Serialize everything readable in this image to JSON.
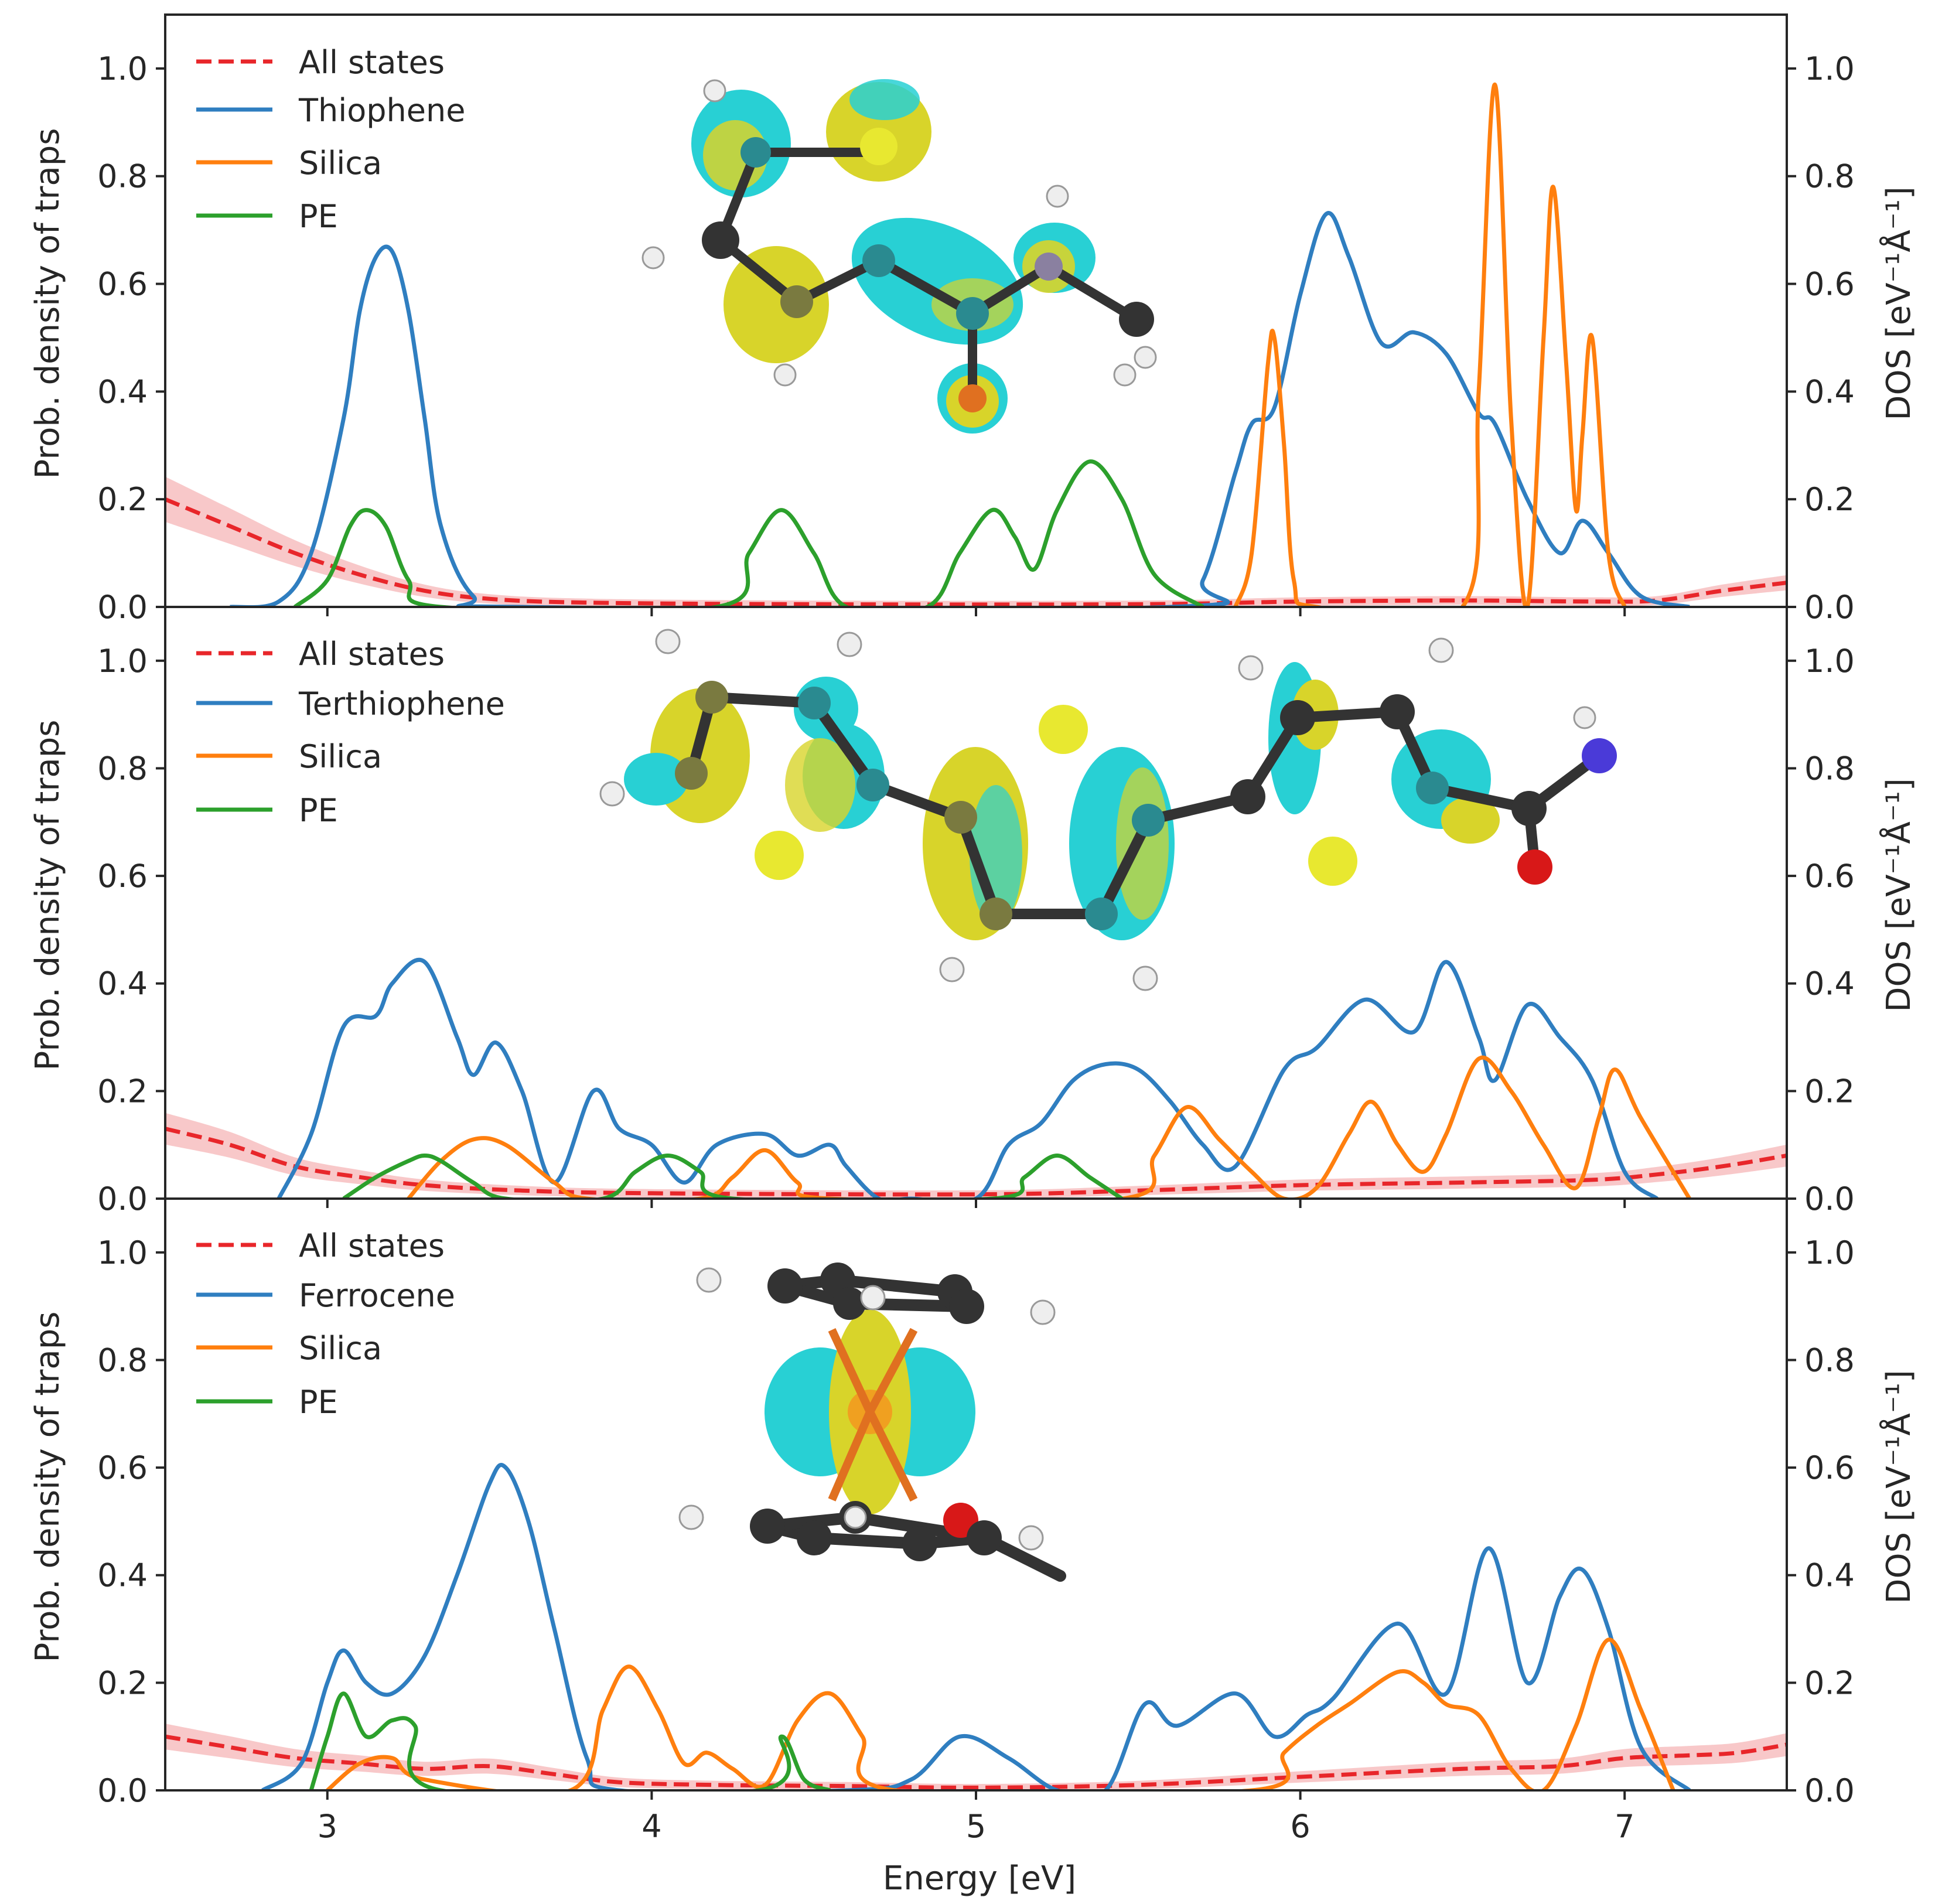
{
  "colors": {
    "all_states": "#e8262a",
    "all_states_band": "#f4a3a5",
    "molecule": "#2f7ec0",
    "silica": "#ff7f0e",
    "pe": "#2ca02c",
    "axis": "#262626",
    "isosurface_cyan": "#28d0d4",
    "isosurface_yellow": "#d8d42a",
    "atom_carbon": "#333333",
    "atom_hydrogen": "#eeeeee",
    "atom_sulfur": "#e8e830",
    "atom_oxygen": "#d81818",
    "atom_nitrogen": "#4a3ad8",
    "atom_iron": "#e07020"
  },
  "chart_data": [
    {
      "type": "line",
      "panel": "top",
      "xlabel": "",
      "ylabel": "Prob. density of traps",
      "ylabel_right": "DOS [eV⁻¹Å⁻¹]",
      "xlim": [
        2.5,
        7.5
      ],
      "ylim": [
        0,
        1.1
      ],
      "x_ticks": [
        3,
        4,
        5,
        6,
        7
      ],
      "y_ticks": [
        "0.0",
        "0.2",
        "0.4",
        "0.6",
        "0.8",
        "1.0"
      ],
      "legend_position": "top-left",
      "inset": "thiophene molecule orbital isosurface",
      "series": [
        {
          "name": "All states",
          "style": "dashed",
          "band": true,
          "x": [
            2.5,
            2.7,
            2.9,
            3.1,
            3.3,
            3.5,
            3.8,
            4.5,
            5.5,
            6.0,
            6.5,
            6.9,
            7.1,
            7.3,
            7.5
          ],
          "y": [
            0.2,
            0.15,
            0.1,
            0.06,
            0.03,
            0.015,
            0.008,
            0.005,
            0.005,
            0.01,
            0.012,
            0.01,
            0.012,
            0.03,
            0.045
          ]
        },
        {
          "name": "Thiophene",
          "x": [
            2.7,
            2.85,
            2.95,
            3.05,
            3.1,
            3.15,
            3.2,
            3.25,
            3.3,
            3.35,
            3.45,
            3.6,
            5.6,
            5.7,
            5.8,
            5.85,
            5.92,
            6.0,
            6.08,
            6.15,
            6.25,
            6.35,
            6.45,
            6.55,
            6.6,
            6.7,
            6.8,
            6.87,
            6.95,
            7.05,
            7.2
          ],
          "y": [
            0.0,
            0.01,
            0.1,
            0.35,
            0.55,
            0.65,
            0.66,
            0.55,
            0.35,
            0.15,
            0.02,
            0.0,
            0.0,
            0.05,
            0.25,
            0.34,
            0.37,
            0.58,
            0.73,
            0.65,
            0.49,
            0.51,
            0.47,
            0.36,
            0.34,
            0.2,
            0.1,
            0.16,
            0.1,
            0.02,
            0.0
          ]
        },
        {
          "name": "Silica",
          "x": [
            5.8,
            5.85,
            5.9,
            5.92,
            5.95,
            5.98,
            6.05,
            6.5,
            6.55,
            6.6,
            6.65,
            6.7,
            6.75,
            6.78,
            6.82,
            6.85,
            6.87,
            6.9,
            6.95,
            7.0
          ],
          "y": [
            0.0,
            0.1,
            0.45,
            0.5,
            0.3,
            0.05,
            0.0,
            0.0,
            0.4,
            0.97,
            0.35,
            0.0,
            0.5,
            0.78,
            0.45,
            0.18,
            0.32,
            0.5,
            0.1,
            0.0
          ]
        },
        {
          "name": "PE",
          "x": [
            2.9,
            3.0,
            3.07,
            3.12,
            3.18,
            3.25,
            3.35,
            4.2,
            4.3,
            4.4,
            4.5,
            4.6,
            4.85,
            4.95,
            5.05,
            5.12,
            5.18,
            5.25,
            5.35,
            5.45,
            5.55,
            5.7
          ],
          "y": [
            0.0,
            0.05,
            0.15,
            0.18,
            0.15,
            0.05,
            0.0,
            0.0,
            0.1,
            0.18,
            0.1,
            0.0,
            0.0,
            0.1,
            0.18,
            0.13,
            0.07,
            0.18,
            0.27,
            0.2,
            0.06,
            0.0
          ]
        }
      ]
    },
    {
      "type": "line",
      "panel": "middle",
      "xlabel": "",
      "ylabel": "Prob. density of traps",
      "ylabel_right": "DOS [eV⁻¹Å⁻¹]",
      "xlim": [
        2.5,
        7.5
      ],
      "ylim": [
        0,
        1.1
      ],
      "x_ticks": [
        3,
        4,
        5,
        6,
        7
      ],
      "y_ticks": [
        "0.0",
        "0.2",
        "0.4",
        "0.6",
        "0.8",
        "1.0"
      ],
      "legend_position": "top-left",
      "inset": "terthiophene molecule orbital isosurface",
      "series": [
        {
          "name": "All states",
          "style": "dashed",
          "band": true,
          "x": [
            2.5,
            2.7,
            2.9,
            3.1,
            3.3,
            3.6,
            4.0,
            5.0,
            5.5,
            6.0,
            6.5,
            6.9,
            7.1,
            7.3,
            7.5
          ],
          "y": [
            0.13,
            0.1,
            0.06,
            0.04,
            0.025,
            0.015,
            0.01,
            0.008,
            0.015,
            0.025,
            0.03,
            0.035,
            0.045,
            0.06,
            0.08
          ]
        },
        {
          "name": "Terthiophene",
          "x": [
            2.85,
            2.95,
            3.05,
            3.15,
            3.2,
            3.3,
            3.4,
            3.45,
            3.52,
            3.6,
            3.7,
            3.82,
            3.9,
            4.0,
            4.1,
            4.2,
            4.35,
            4.45,
            4.55,
            4.6,
            4.7,
            4.8,
            5.0,
            5.1,
            5.2,
            5.3,
            5.4,
            5.5,
            5.6,
            5.7,
            5.8,
            5.95,
            6.05,
            6.2,
            6.35,
            6.45,
            6.55,
            6.6,
            6.7,
            6.8,
            6.9,
            7.0,
            7.1
          ],
          "y": [
            0.0,
            0.12,
            0.32,
            0.34,
            0.4,
            0.44,
            0.3,
            0.23,
            0.29,
            0.2,
            0.03,
            0.2,
            0.13,
            0.1,
            0.03,
            0.1,
            0.12,
            0.08,
            0.1,
            0.06,
            0.0,
            0.0,
            0.0,
            0.1,
            0.14,
            0.22,
            0.25,
            0.24,
            0.18,
            0.1,
            0.06,
            0.24,
            0.28,
            0.37,
            0.31,
            0.44,
            0.3,
            0.22,
            0.36,
            0.3,
            0.22,
            0.05,
            0.0
          ]
        },
        {
          "name": "Silica",
          "x": [
            3.25,
            3.35,
            3.45,
            3.55,
            3.7,
            3.8,
            4.15,
            4.25,
            4.35,
            4.45,
            4.55,
            5.45,
            5.55,
            5.65,
            5.75,
            5.85,
            5.95,
            6.05,
            6.15,
            6.22,
            6.3,
            6.38,
            6.45,
            6.55,
            6.65,
            6.75,
            6.85,
            6.92,
            6.97,
            7.05,
            7.2
          ],
          "y": [
            0.0,
            0.07,
            0.11,
            0.1,
            0.03,
            0.0,
            0.0,
            0.04,
            0.09,
            0.03,
            0.0,
            0.0,
            0.08,
            0.17,
            0.11,
            0.05,
            0.0,
            0.02,
            0.12,
            0.18,
            0.1,
            0.05,
            0.12,
            0.26,
            0.2,
            0.1,
            0.02,
            0.15,
            0.24,
            0.15,
            0.0
          ]
        },
        {
          "name": "PE",
          "x": [
            3.05,
            3.15,
            3.25,
            3.3,
            3.35,
            3.45,
            3.55,
            3.85,
            3.95,
            4.05,
            4.15,
            4.25,
            5.05,
            5.15,
            5.25,
            5.35,
            5.45
          ],
          "y": [
            0.0,
            0.04,
            0.07,
            0.08,
            0.07,
            0.03,
            0.0,
            0.0,
            0.05,
            0.08,
            0.05,
            0.0,
            0.0,
            0.04,
            0.08,
            0.04,
            0.0
          ]
        }
      ]
    },
    {
      "type": "line",
      "panel": "bottom",
      "xlabel": "Energy [eV]",
      "ylabel": "Prob. density of traps",
      "ylabel_right": "DOS [eV⁻¹Å⁻¹]",
      "xlim": [
        2.5,
        7.5
      ],
      "ylim": [
        0,
        1.1
      ],
      "x_ticks": [
        3,
        4,
        5,
        6,
        7
      ],
      "y_ticks": [
        "0.0",
        "0.2",
        "0.4",
        "0.6",
        "0.8",
        "1.0"
      ],
      "legend_position": "top-left",
      "inset": "ferrocene molecule orbital isosurface",
      "series": [
        {
          "name": "All states",
          "style": "dashed",
          "band": true,
          "x": [
            2.5,
            2.7,
            2.9,
            3.1,
            3.3,
            3.5,
            3.7,
            3.9,
            4.2,
            4.6,
            5.0,
            5.5,
            6.0,
            6.5,
            6.8,
            7.0,
            7.2,
            7.35,
            7.5
          ],
          "y": [
            0.1,
            0.08,
            0.06,
            0.05,
            0.04,
            0.045,
            0.03,
            0.015,
            0.01,
            0.008,
            0.005,
            0.01,
            0.025,
            0.04,
            0.045,
            0.06,
            0.065,
            0.07,
            0.085
          ]
        },
        {
          "name": "Ferrocene",
          "x": [
            2.8,
            2.92,
            3.0,
            3.05,
            3.12,
            3.2,
            3.3,
            3.4,
            3.5,
            3.55,
            3.62,
            3.7,
            3.8,
            3.9,
            4.6,
            4.8,
            4.95,
            5.1,
            5.25,
            5.4,
            5.52,
            5.62,
            5.8,
            5.92,
            6.02,
            6.1,
            6.3,
            6.45,
            6.58,
            6.7,
            6.8,
            6.87,
            6.95,
            7.05,
            7.2
          ],
          "y": [
            0.0,
            0.05,
            0.2,
            0.26,
            0.2,
            0.18,
            0.25,
            0.4,
            0.57,
            0.6,
            0.5,
            0.3,
            0.06,
            0.0,
            0.0,
            0.02,
            0.1,
            0.06,
            0.0,
            0.0,
            0.16,
            0.12,
            0.18,
            0.1,
            0.14,
            0.17,
            0.31,
            0.18,
            0.45,
            0.2,
            0.36,
            0.41,
            0.3,
            0.08,
            0.0
          ]
        },
        {
          "name": "Silica",
          "x": [
            3.0,
            3.1,
            3.2,
            3.3,
            3.75,
            3.85,
            3.93,
            4.02,
            4.1,
            4.17,
            4.25,
            4.35,
            4.45,
            4.55,
            4.65,
            4.75,
            5.85,
            5.95,
            6.05,
            6.15,
            6.3,
            6.38,
            6.45,
            6.55,
            6.65,
            6.75,
            6.85,
            6.95,
            7.05,
            7.15
          ],
          "y": [
            0.0,
            0.05,
            0.06,
            0.02,
            0.0,
            0.15,
            0.23,
            0.15,
            0.05,
            0.07,
            0.04,
            0.01,
            0.13,
            0.18,
            0.1,
            0.0,
            0.0,
            0.07,
            0.12,
            0.16,
            0.22,
            0.2,
            0.16,
            0.14,
            0.04,
            0.0,
            0.12,
            0.28,
            0.15,
            0.0
          ]
        },
        {
          "name": "PE",
          "x": [
            2.95,
            3.0,
            3.05,
            3.12,
            3.2,
            3.27,
            3.35,
            4.33,
            4.4,
            4.47,
            4.55
          ],
          "y": [
            0.0,
            0.1,
            0.18,
            0.1,
            0.13,
            0.12,
            0.0,
            0.0,
            0.1,
            0.02,
            0.0
          ]
        }
      ]
    }
  ]
}
